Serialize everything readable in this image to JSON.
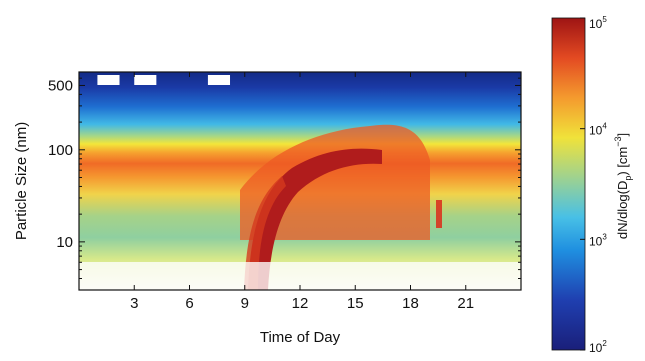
{
  "chart_data": {
    "type": "heatmap",
    "title": "",
    "xlabel": "Time of Day",
    "ylabel": "Particle Size (nm)",
    "x_ticks": [
      3,
      6,
      9,
      12,
      15,
      18,
      21
    ],
    "x_tick_labels": [
      "3",
      "6",
      "9",
      "12",
      "15",
      "18",
      "21"
    ],
    "xlim": [
      0,
      24
    ],
    "y_scale": "log",
    "y_ticks": [
      10,
      100,
      500
    ],
    "y_tick_labels": [
      "10",
      "100",
      "500"
    ],
    "ylim": [
      3,
      700
    ],
    "colorbar": {
      "label_parts": [
        "dN/dlog(D",
        "p",
        ") [cm",
        "−3",
        "]"
      ],
      "scale": "log",
      "range": [
        100,
        100000
      ],
      "ticks": [
        100,
        1000,
        10000,
        100000
      ],
      "tick_bases": [
        "10",
        "10",
        "10",
        "10"
      ],
      "tick_exponents": [
        "2",
        "3",
        "4",
        "5"
      ],
      "colormap": "jet"
    },
    "features": {
      "background_mode": {
        "approx_diameter_nm": [
          60,
          150
        ],
        "approx_level": 30000
      },
      "nucleation_event": {
        "start_hour": 9.5,
        "end_hour": 17,
        "start_diameter_nm": 3.5,
        "end_diameter_nm": 80,
        "peak_level": 100000
      },
      "data_gaps": [
        [
          1.0,
          2.2
        ],
        [
          3.0,
          4.2
        ],
        [
          7.0,
          8.2
        ]
      ]
    }
  }
}
